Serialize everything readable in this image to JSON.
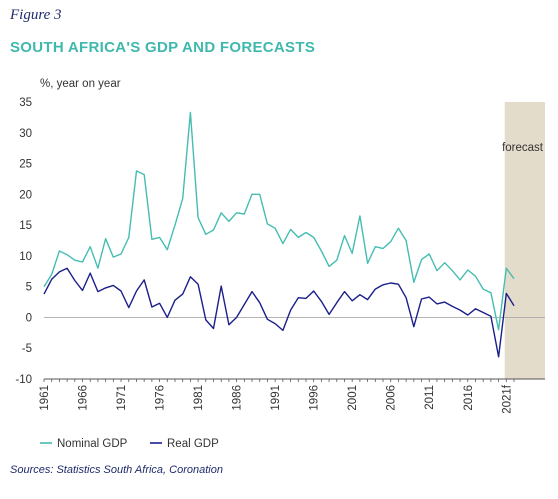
{
  "figure_label": "Figure 3",
  "title": "SOUTH AFRICA'S GDP AND FORECASTS",
  "source": "Sources: Statistics South Africa, Coronation",
  "colors": {
    "nominal": "#45bdb1",
    "real": "#1a1f8a",
    "forecast_band": "#e4dccb"
  },
  "chart_data": {
    "type": "line",
    "ylabel": "%, year on year",
    "ylim": [
      -10,
      35
    ],
    "yticks": [
      -10,
      -5,
      0,
      5,
      10,
      15,
      20,
      25,
      30,
      35
    ],
    "xtick_labels": [
      "1961",
      "1966",
      "1971",
      "1976",
      "1981",
      "1986",
      "1991",
      "1996",
      "2001",
      "2006",
      "2011",
      "2016",
      "2021f"
    ],
    "xtick_years": [
      1961,
      1966,
      1971,
      1976,
      1981,
      1986,
      1991,
      1996,
      2001,
      2006,
      2011,
      2016,
      2021
    ],
    "forecast_label": "forecast",
    "forecast_start": 2021,
    "x": [
      1961,
      1962,
      1963,
      1964,
      1965,
      1966,
      1967,
      1968,
      1969,
      1970,
      1971,
      1972,
      1973,
      1974,
      1975,
      1976,
      1977,
      1978,
      1979,
      1980,
      1981,
      1982,
      1983,
      1984,
      1985,
      1986,
      1987,
      1988,
      1989,
      1990,
      1991,
      1992,
      1993,
      1994,
      1995,
      1996,
      1997,
      1998,
      1999,
      2000,
      2001,
      2002,
      2003,
      2004,
      2005,
      2006,
      2007,
      2008,
      2009,
      2010,
      2011,
      2012,
      2013,
      2014,
      2015,
      2016,
      2017,
      2018,
      2019,
      2020,
      2021,
      2022
    ],
    "series": [
      {
        "name": "Nominal GDP",
        "values": [
          5,
          7,
          10.8,
          10.2,
          9.3,
          9,
          11.5,
          8,
          12.8,
          9.8,
          10.3,
          13,
          23.8,
          23.2,
          12.7,
          13,
          11,
          15,
          19.3,
          33.3,
          16.2,
          13.5,
          14.2,
          17,
          15.6,
          17,
          16.8,
          20,
          20,
          15.2,
          14.5,
          12,
          14.3,
          13,
          13.8,
          13,
          10.8,
          8.3,
          9.3,
          13.3,
          10.4,
          16.5,
          8.8,
          11.5,
          11.2,
          12.3,
          14.5,
          12.5,
          5.7,
          9.4,
          10.3,
          7.6,
          8.9,
          7.6,
          6.1,
          7.7,
          6.7,
          4.6,
          4,
          -2,
          8,
          6.3
        ]
      },
      {
        "name": "Real GDP",
        "values": [
          3.8,
          6.2,
          7.4,
          8,
          6,
          4.4,
          7.2,
          4.2,
          4.8,
          5.2,
          4.3,
          1.6,
          4.3,
          6.1,
          1.7,
          2.3,
          0,
          2.8,
          3.8,
          6.6,
          5.4,
          -0.4,
          -1.8,
          5.1,
          -1.2,
          0,
          2.1,
          4.2,
          2.4,
          -0.3,
          -1,
          -2.1,
          1.2,
          3.2,
          3.1,
          4.3,
          2.6,
          0.5,
          2.4,
          4.2,
          2.7,
          3.7,
          2.9,
          4.6,
          5.3,
          5.6,
          5.4,
          3.2,
          -1.5,
          3,
          3.3,
          2.2,
          2.5,
          1.8,
          1.2,
          0.4,
          1.4,
          0.8,
          0.2,
          -6.4,
          3.9,
          1.9
        ]
      }
    ],
    "legend_position": "bottom-left"
  }
}
